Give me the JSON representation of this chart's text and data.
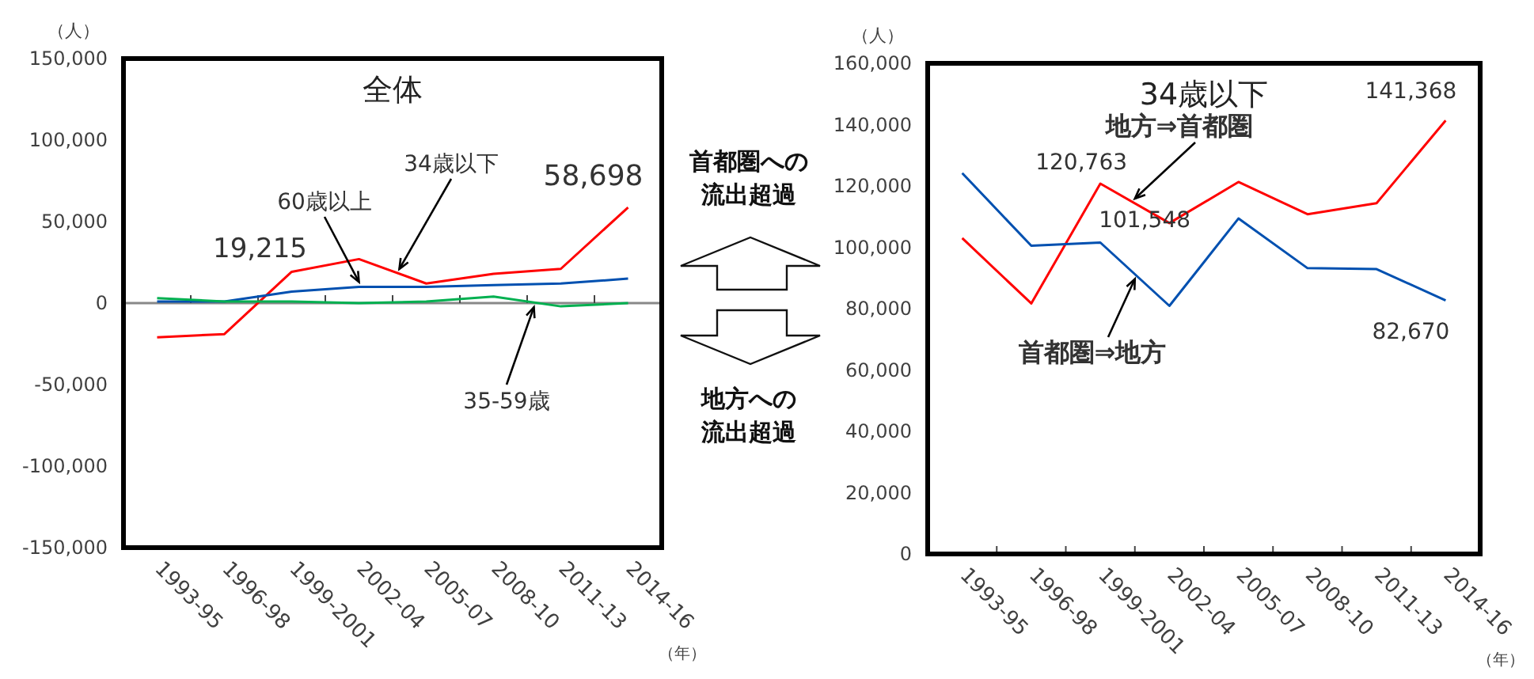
{
  "chart_data": [
    {
      "type": "line",
      "title": "全体",
      "ylabel": "（人）",
      "xlabel": "（年）",
      "categories": [
        "1993-95",
        "1996-98",
        "1999-2001",
        "2002-04",
        "2005-07",
        "2008-10",
        "2011-13",
        "2014-16"
      ],
      "ylim": [
        -150000,
        150000
      ],
      "yticks": [
        {
          "value": -150000,
          "label": "-150,000"
        },
        {
          "value": -100000,
          "label": "-100,000"
        },
        {
          "value": -50000,
          "label": "-50,000"
        },
        0,
        {
          "value": 50000,
          "label": "50,000"
        },
        {
          "value": 100000,
          "label": "100,000"
        },
        {
          "value": 150000,
          "label": "150,000"
        }
      ],
      "series": [
        {
          "name": "34歳以下",
          "color": "#ff0000",
          "values": [
            -21000,
            -19000,
            19215,
            27000,
            12000,
            18000,
            21000,
            58698
          ],
          "value_labels": [
            null,
            null,
            "19,215",
            null,
            null,
            null,
            null,
            "58,698"
          ]
        },
        {
          "name": "60歳以上",
          "color": "#0050b0",
          "values": [
            1000,
            1000,
            7000,
            10000,
            10000,
            11000,
            12000,
            15000
          ]
        },
        {
          "name": "35-59歳",
          "color": "#00b050",
          "values": [
            3000,
            1000,
            1000,
            0,
            1000,
            4000,
            -2000,
            0
          ]
        }
      ],
      "annotations": [
        "首都圏への流出超過",
        "地方への流出超過"
      ],
      "ref_lines": [
        {
          "axis": "y",
          "value": 0,
          "color": "#888888"
        }
      ],
      "grid": false,
      "marker": "none",
      "line_style": "solid"
    },
    {
      "type": "line",
      "title": "34歳以下",
      "ylabel": "（人）",
      "xlabel": "（年）",
      "categories": [
        "1993-95",
        "1996-98",
        "1999-2001",
        "2002-04",
        "2005-07",
        "2008-10",
        "2011-13",
        "2014-16"
      ],
      "ylim": [
        0,
        160000
      ],
      "yticks": [
        0,
        {
          "value": 20000,
          "label": "20,000"
        },
        {
          "value": 40000,
          "label": "40,000"
        },
        {
          "value": 60000,
          "label": "60,000"
        },
        {
          "value": 80000,
          "label": "80,000"
        },
        {
          "value": 100000,
          "label": "100,000"
        },
        {
          "value": 120000,
          "label": "120,000"
        },
        {
          "value": 140000,
          "label": "140,000"
        },
        {
          "value": 160000,
          "label": "160,000"
        }
      ],
      "series": [
        {
          "name": "地方⇒首都圏",
          "color": "#ff0000",
          "values": [
            103000,
            81700,
            120763,
            107900,
            121300,
            110800,
            114400,
            141368
          ],
          "value_labels": [
            null,
            null,
            "120,763",
            null,
            null,
            null,
            null,
            "141,368"
          ]
        },
        {
          "name": "首都圏⇒地方",
          "color": "#0050b0",
          "values": [
            124200,
            100500,
            101548,
            80900,
            109400,
            93200,
            92900,
            82670
          ],
          "value_labels": [
            null,
            null,
            "101,548",
            null,
            null,
            null,
            null,
            "82,670"
          ]
        }
      ],
      "grid": false,
      "marker": "none",
      "line_style": "solid"
    }
  ]
}
